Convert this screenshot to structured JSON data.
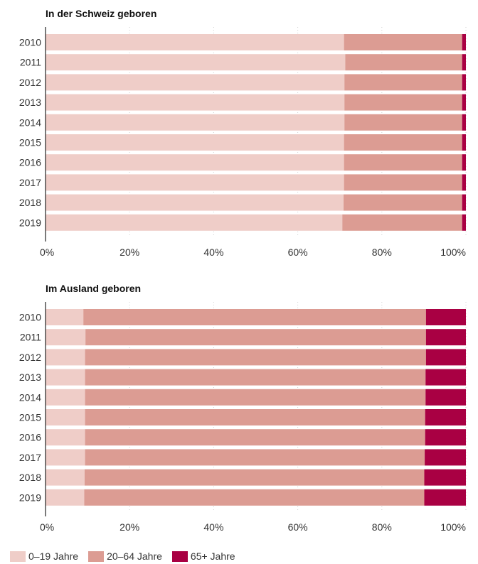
{
  "chart_data": [
    {
      "type": "bar",
      "orientation": "horizontal",
      "stacked": true,
      "title": "In der Schweiz geboren",
      "categories": [
        "2010",
        "2011",
        "2012",
        "2013",
        "2014",
        "2015",
        "2016",
        "2017",
        "2018",
        "2019"
      ],
      "series": [
        {
          "name": "0–19 Jahre",
          "color": "#efcdc8",
          "values": [
            71.0,
            71.3,
            71.1,
            71.1,
            71.1,
            71.0,
            71.0,
            71.0,
            70.9,
            70.6
          ]
        },
        {
          "name": "20–64 Jahre",
          "color": "#dc9c93",
          "values": [
            28.1,
            27.8,
            28.0,
            28.0,
            28.0,
            28.1,
            28.1,
            28.1,
            28.2,
            28.5
          ]
        },
        {
          "name": "65+ Jahre",
          "color": "#a90043",
          "values": [
            0.9,
            0.9,
            0.9,
            0.9,
            0.9,
            0.9,
            0.9,
            0.9,
            0.9,
            0.9
          ]
        }
      ],
      "xlim": [
        0,
        100
      ],
      "xticks": [
        "0%",
        "20%",
        "40%",
        "60%",
        "80%",
        "100%"
      ]
    },
    {
      "type": "bar",
      "orientation": "horizontal",
      "stacked": true,
      "title": "Im Ausland geboren",
      "categories": [
        "2010",
        "2011",
        "2012",
        "2013",
        "2014",
        "2015",
        "2016",
        "2017",
        "2018",
        "2019"
      ],
      "series": [
        {
          "name": "0–19 Jahre",
          "color": "#efcdc8",
          "values": [
            9.0,
            9.5,
            9.4,
            9.4,
            9.4,
            9.4,
            9.4,
            9.4,
            9.3,
            9.2
          ]
        },
        {
          "name": "20–64 Jahre",
          "color": "#dc9c93",
          "values": [
            81.5,
            81.0,
            81.1,
            81.0,
            81.0,
            80.9,
            80.9,
            80.8,
            80.8,
            80.9
          ]
        },
        {
          "name": "65+ Jahre",
          "color": "#a90043",
          "values": [
            9.5,
            9.5,
            9.5,
            9.6,
            9.6,
            9.7,
            9.7,
            9.8,
            9.9,
            9.9
          ]
        }
      ],
      "xlim": [
        0,
        100
      ],
      "xticks": [
        "0%",
        "20%",
        "40%",
        "60%",
        "80%",
        "100%"
      ]
    }
  ],
  "legend": [
    {
      "label": "0–19 Jahre",
      "color": "#efcdc8"
    },
    {
      "label": "20–64 Jahre",
      "color": "#dc9c93"
    },
    {
      "label": "65+ Jahre",
      "color": "#a90043"
    }
  ]
}
